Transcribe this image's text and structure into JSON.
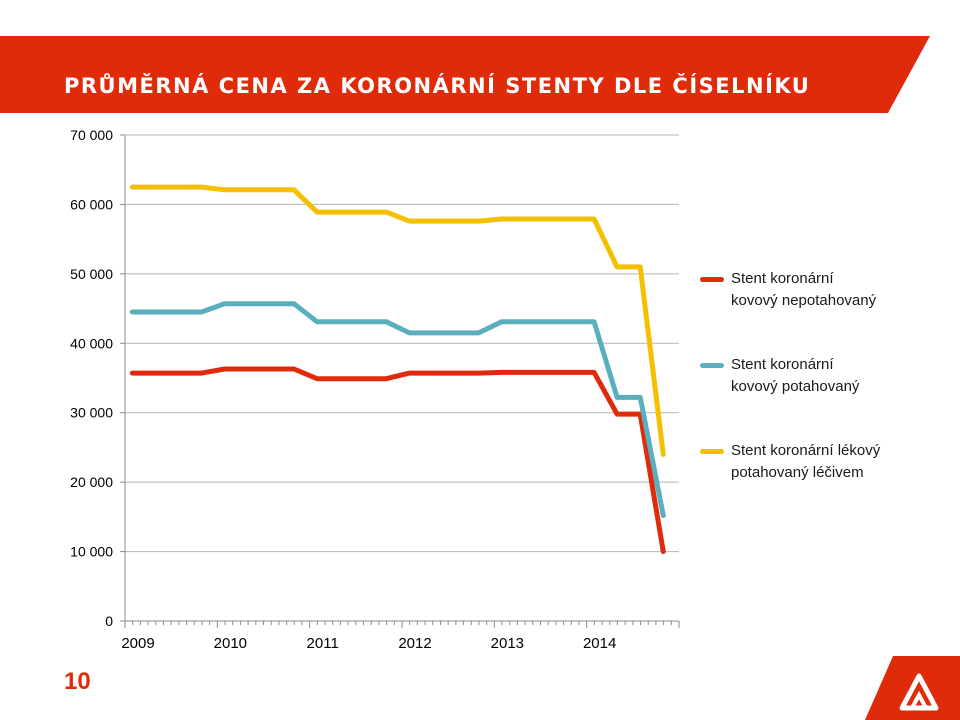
{
  "slide": {
    "title": "PRŮMĚRNÁ CENA ZA KORONÁRNÍ STENTY DLE ČÍSELNÍKU",
    "page_number": "10",
    "accent_color": "#e02b0b"
  },
  "chart_data": {
    "type": "line",
    "title": "",
    "xlabel": "",
    "ylabel": "",
    "x_ticks": [
      "2009",
      "2010",
      "2011",
      "2012",
      "2013",
      "2014"
    ],
    "x_range": [
      2009,
      2015
    ],
    "ylim": [
      0,
      70000
    ],
    "y_ticks": [
      0,
      10000,
      20000,
      30000,
      40000,
      50000,
      60000,
      70000
    ],
    "y_tick_labels": [
      "0",
      "10 000",
      "20 000",
      "30 000",
      "40 000",
      "50 000",
      "60 000",
      "70 000"
    ],
    "grid": "horizontal",
    "legend_position": "right",
    "x": [
      2009.08,
      2009.33,
      2009.58,
      2009.83,
      2010.08,
      2010.33,
      2010.58,
      2010.83,
      2011.08,
      2011.33,
      2011.58,
      2011.83,
      2012.08,
      2012.33,
      2012.58,
      2012.83,
      2013.08,
      2013.33,
      2013.58,
      2013.83,
      2014.08,
      2014.33,
      2014.58,
      2014.83
    ],
    "series": [
      {
        "name": "Stent koronární kovový nepotahovaný",
        "color": "#e02b0b",
        "values": [
          35700,
          35700,
          35700,
          35700,
          36300,
          36300,
          36300,
          36300,
          34900,
          34900,
          34900,
          34900,
          35700,
          35700,
          35700,
          35700,
          35800,
          35800,
          35800,
          35800,
          35800,
          29800,
          29800,
          10000
        ]
      },
      {
        "name": "Stent koronární kovový potahovaný",
        "color": "#5aaebd",
        "values": [
          44500,
          44500,
          44500,
          44500,
          45700,
          45700,
          45700,
          45700,
          43100,
          43100,
          43100,
          43100,
          41500,
          41500,
          41500,
          41500,
          43100,
          43100,
          43100,
          43100,
          43100,
          32200,
          32200,
          15200
        ]
      },
      {
        "name": "Stent koronární lékový potahovaný léčivem",
        "color": "#f5c000",
        "values": [
          62500,
          62500,
          62500,
          62500,
          62100,
          62100,
          62100,
          62100,
          58900,
          58900,
          58900,
          58900,
          57600,
          57600,
          57600,
          57600,
          57900,
          57900,
          57900,
          57900,
          57900,
          51000,
          51000,
          24000
        ]
      }
    ]
  },
  "legend": {
    "items": [
      {
        "line1": "Stent koronární",
        "line2": "kovový nepotahovaný",
        "color": "#e02b0b"
      },
      {
        "line1": "Stent koronární",
        "line2": "kovový potahovaný",
        "color": "#5aaebd"
      },
      {
        "line1": "Stent koronární lékový",
        "line2": "potahovaný léčivem",
        "color": "#f5c000"
      }
    ]
  }
}
